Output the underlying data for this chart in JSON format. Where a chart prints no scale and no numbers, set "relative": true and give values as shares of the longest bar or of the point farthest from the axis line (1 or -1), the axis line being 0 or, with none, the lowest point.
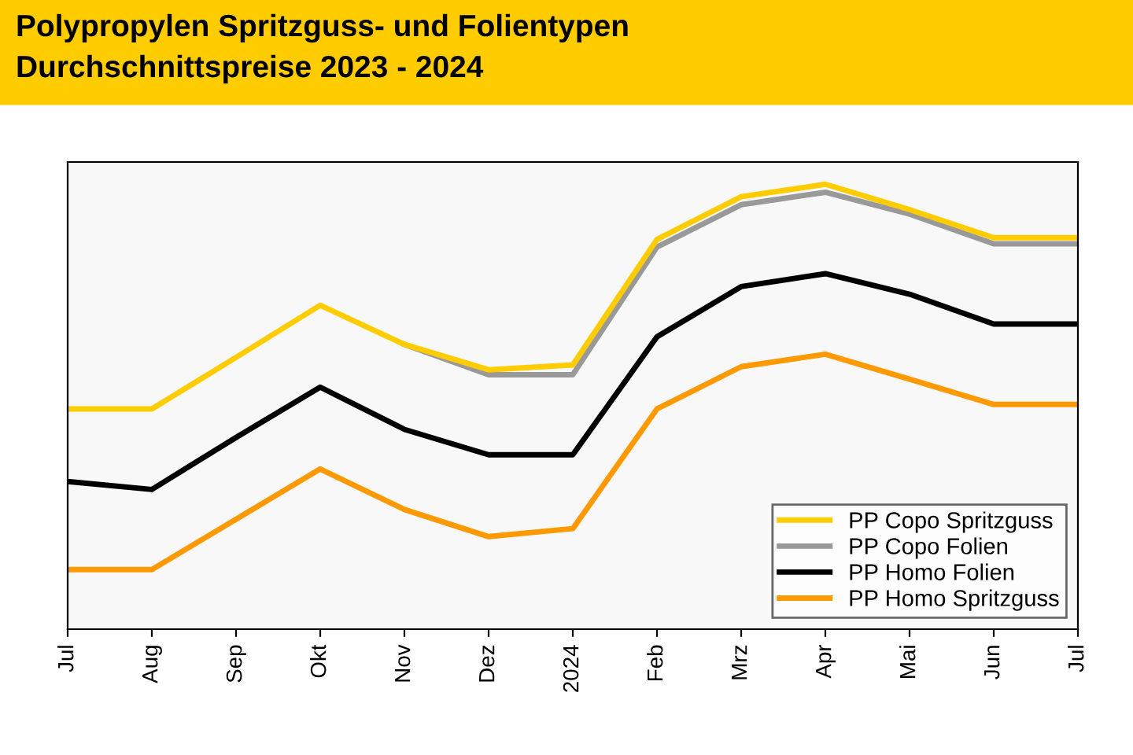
{
  "chart_data": {
    "type": "line",
    "title": "Polypropylen Spritzguss- und Folientypen",
    "subtitle": "Durchschnittspreise 2023 - 2024",
    "relative": true,
    "categories": [
      "Jul",
      "Aug",
      "Sep",
      "Okt",
      "Nov",
      "Dez",
      "2024",
      "Feb",
      "Mrz",
      "Apr",
      "Mai",
      "Jun",
      "Jul"
    ],
    "series": [
      {
        "name": "PP Homo Spritzguss",
        "color": "#ff9900",
        "values": [
          0.134,
          0.134,
          0.247,
          0.36,
          0.269,
          0.208,
          0.226,
          0.495,
          0.59,
          0.618,
          0.562,
          0.505,
          0.505
        ]
      },
      {
        "name": "PP Homo Folien",
        "color": "#000000",
        "values": [
          0.332,
          0.314,
          0.431,
          0.544,
          0.449,
          0.392,
          0.392,
          0.657,
          0.77,
          0.799,
          0.753,
          0.686,
          0.686
        ]
      },
      {
        "name": "PP Copo Folien",
        "color": "#999999",
        "values": [
          null,
          null,
          null,
          null,
          0.64,
          0.572,
          0.572,
          0.859,
          0.954,
          0.982,
          0.933,
          0.866,
          0.866
        ]
      },
      {
        "name": "PP Copo Spritzguss",
        "color": "#ffcc00",
        "values": [
          0.495,
          0.495,
          0.611,
          0.728,
          0.64,
          0.583,
          0.594,
          0.876,
          0.972,
          1,
          0.943,
          0.88,
          0.88
        ]
      }
    ],
    "legend": "bottom right",
    "marker": "none",
    "line_style": "solid"
  }
}
